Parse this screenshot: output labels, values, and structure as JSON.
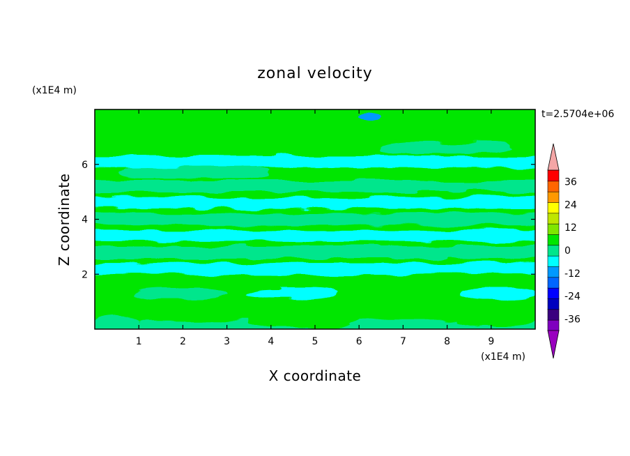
{
  "chart_data": {
    "type": "heatmap",
    "title": "zonal velocity",
    "xlabel": "X coordinate",
    "ylabel": "Z coordinate",
    "x_units": "(x1E4 m)",
    "y_units": "(x1E4 m)",
    "time_label": "t=2.5704e+06",
    "xlim": [
      0,
      10
    ],
    "ylim": [
      0,
      8
    ],
    "x_ticks": [
      "1",
      "2",
      "3",
      "4",
      "5",
      "6",
      "7",
      "8",
      "9"
    ],
    "y_ticks": [
      "2",
      "4",
      "6"
    ],
    "colorbar": {
      "tick_labels": [
        "36",
        "24",
        "12",
        "0",
        "-12",
        "-24",
        "-36"
      ],
      "tick_values": [
        36,
        24,
        12,
        0,
        -12,
        -24,
        -36
      ],
      "levels": [
        -42,
        -36,
        -30,
        -24,
        -18,
        -12,
        -6,
        0,
        6,
        12,
        18,
        24,
        30,
        36,
        42
      ],
      "colors": [
        "#7f00bf",
        "#3a007f",
        "#0000bf",
        "#0000ff",
        "#0066ff",
        "#0099ff",
        "#00ffff",
        "#00e68c",
        "#00e600",
        "#7fe600",
        "#bfe600",
        "#ffff00",
        "#ff9900",
        "#ff6600",
        "#ff0000"
      ],
      "over_color": "#f4a6a6",
      "under_color": "#9900bf"
    },
    "bands": [
      {
        "z": 0.1,
        "x": [
          0,
          10
        ],
        "value": 5
      },
      {
        "z": 0.3,
        "x": [
          0,
          1.0
        ],
        "value": 3
      },
      {
        "z": 0.3,
        "x": [
          3.5,
          6.0
        ],
        "value": 8
      },
      {
        "z": 0.3,
        "x": [
          8.2,
          10
        ],
        "value": 6
      },
      {
        "z": 1.3,
        "x": [
          0.9,
          3.0
        ],
        "value": 5
      },
      {
        "z": 1.3,
        "x": [
          3.5,
          5.5
        ],
        "value": -5
      },
      {
        "z": 1.3,
        "x": [
          6.1,
          7.3
        ],
        "value": 6
      },
      {
        "z": 1.3,
        "x": [
          8.3,
          10
        ],
        "value": -5
      },
      {
        "z": 2.2,
        "x": [
          0,
          10
        ],
        "value": -2
      },
      {
        "z": 2.8,
        "x": [
          0,
          10
        ],
        "value": 2
      },
      {
        "z": 3.4,
        "x": [
          0,
          10
        ],
        "value": -2
      },
      {
        "z": 4.0,
        "x": [
          0,
          10
        ],
        "value": 2
      },
      {
        "z": 4.6,
        "x": [
          0,
          10
        ],
        "value": -2
      },
      {
        "z": 5.2,
        "x": [
          0,
          10
        ],
        "value": 2
      },
      {
        "z": 5.7,
        "x": [
          0.5,
          4.0
        ],
        "value": 3
      },
      {
        "z": 6.1,
        "x": [
          0,
          10
        ],
        "value": -2
      },
      {
        "z": 6.6,
        "x": [
          0,
          3.5
        ],
        "value": 6
      },
      {
        "z": 6.6,
        "x": [
          6.5,
          9.5
        ],
        "value": 4
      },
      {
        "z": 7.1,
        "x": [
          4.0,
          8.0
        ],
        "value": 6
      },
      {
        "z": 7.5,
        "x": [
          0.5,
          3.2
        ],
        "value": 8
      },
      {
        "z": 7.75,
        "x": [
          6.0,
          6.5
        ],
        "value": -10
      }
    ]
  }
}
